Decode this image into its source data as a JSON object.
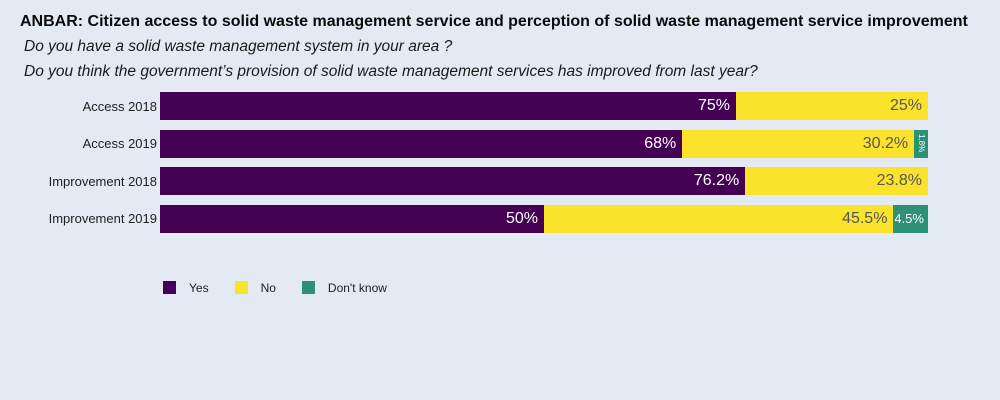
{
  "page": {
    "background": "#E3EAF4"
  },
  "header": {
    "title": "ANBAR: Citizen access to solid waste management service and perception of solid waste management service improvement",
    "subtitle1": "Do you have a solid waste management  system in your area ?",
    "subtitle2": "Do you think the government’s provision of solid waste management services has improved from last year?"
  },
  "colors": {
    "yes": "#440154",
    "no": "#FCE32B",
    "dont_know": "#2E9077",
    "label_on_dark": "#FFFFFF",
    "label_on_yellow": "#54565B"
  },
  "chart_data": {
    "type": "bar",
    "orientation": "horizontal",
    "stacked": true,
    "grid": false,
    "xlim": [
      0,
      100
    ],
    "legend_position": "bottom",
    "title": "ANBAR: Citizen access to solid waste management service and perception of solid waste management service improvement",
    "categories": [
      "Access 2018",
      "Access 2019",
      "Improvement 2018",
      "Improvement 2019"
    ],
    "series": [
      {
        "name": "Yes",
        "color": "#440154",
        "label_tone": "light",
        "values": [
          75,
          68,
          76.2,
          50
        ],
        "labels": [
          "75%",
          "68%",
          "76.2%",
          "50%"
        ]
      },
      {
        "name": "No",
        "color": "#FCE32B",
        "label_tone": "dark",
        "values": [
          25,
          30.2,
          23.8,
          45.5
        ],
        "labels": [
          "25%",
          "30.2%",
          "23.8%",
          "45.5%"
        ]
      },
      {
        "name": "Don't know",
        "color": "#2E9077",
        "label_tone": "light",
        "values": [
          0,
          1.8,
          0,
          4.5
        ],
        "labels": [
          "",
          "1.8%",
          "",
          "4.5%"
        ]
      }
    ]
  },
  "legend": {
    "items": [
      {
        "label": "Yes",
        "color": "#440154"
      },
      {
        "label": "No",
        "color": "#FCE32B"
      },
      {
        "label": "Don't know",
        "color": "#2E9077"
      }
    ]
  }
}
